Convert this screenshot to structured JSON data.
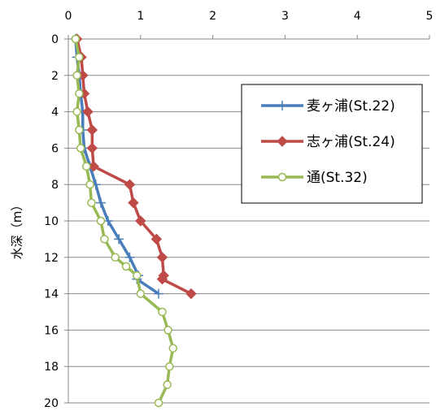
{
  "chart_data": {
    "type": "line",
    "title": "",
    "xlabel": "",
    "ylabel": "水深（m）",
    "xlim": [
      0,
      5
    ],
    "ylim": [
      0,
      20
    ],
    "y_inverted": true,
    "x_axis_position": "top",
    "x_ticks": [
      "0",
      "1",
      "2",
      "3",
      "4",
      "5"
    ],
    "y_ticks": [
      "0",
      "2",
      "4",
      "6",
      "8",
      "10",
      "12",
      "14",
      "16",
      "18",
      "20"
    ],
    "grid": "horizontal",
    "legend_position": "right",
    "series": [
      {
        "name": "麦ヶ浦(St.22)",
        "color": "#4a7ebb",
        "marker": "plus",
        "points": [
          [
            0.1,
            0
          ],
          [
            0.12,
            1
          ],
          [
            0.15,
            2
          ],
          [
            0.17,
            3
          ],
          [
            0.2,
            4
          ],
          [
            0.2,
            5
          ],
          [
            0.22,
            6
          ],
          [
            0.3,
            7
          ],
          [
            0.38,
            8
          ],
          [
            0.45,
            9
          ],
          [
            0.55,
            10
          ],
          [
            0.7,
            11
          ],
          [
            0.85,
            12
          ],
          [
            0.97,
            13
          ],
          [
            0.95,
            13.2
          ],
          [
            1.25,
            14
          ]
        ]
      },
      {
        "name": "志ヶ浦(St.24)",
        "color": "#be4b48",
        "marker": "diamond",
        "points": [
          [
            0.12,
            0
          ],
          [
            0.18,
            1
          ],
          [
            0.2,
            2
          ],
          [
            0.22,
            3
          ],
          [
            0.27,
            4
          ],
          [
            0.33,
            5
          ],
          [
            0.33,
            6
          ],
          [
            0.35,
            7
          ],
          [
            0.85,
            8
          ],
          [
            0.9,
            9
          ],
          [
            1.0,
            10
          ],
          [
            1.22,
            11
          ],
          [
            1.3,
            12
          ],
          [
            1.32,
            13
          ],
          [
            1.3,
            13.2
          ],
          [
            1.7,
            14
          ]
        ]
      },
      {
        "name": "通(St.32)",
        "color": "#98b954",
        "marker": "circle",
        "points": [
          [
            0.1,
            0
          ],
          [
            0.15,
            1
          ],
          [
            0.12,
            2
          ],
          [
            0.15,
            3
          ],
          [
            0.12,
            4
          ],
          [
            0.15,
            5
          ],
          [
            0.17,
            6
          ],
          [
            0.25,
            7
          ],
          [
            0.3,
            8
          ],
          [
            0.32,
            9
          ],
          [
            0.45,
            10
          ],
          [
            0.5,
            11
          ],
          [
            0.65,
            12
          ],
          [
            0.8,
            12.5
          ],
          [
            0.95,
            13
          ],
          [
            1.0,
            14
          ],
          [
            1.3,
            15
          ],
          [
            1.38,
            16
          ],
          [
            1.45,
            17
          ],
          [
            1.4,
            18
          ],
          [
            1.37,
            19
          ],
          [
            1.25,
            20
          ]
        ]
      }
    ]
  }
}
